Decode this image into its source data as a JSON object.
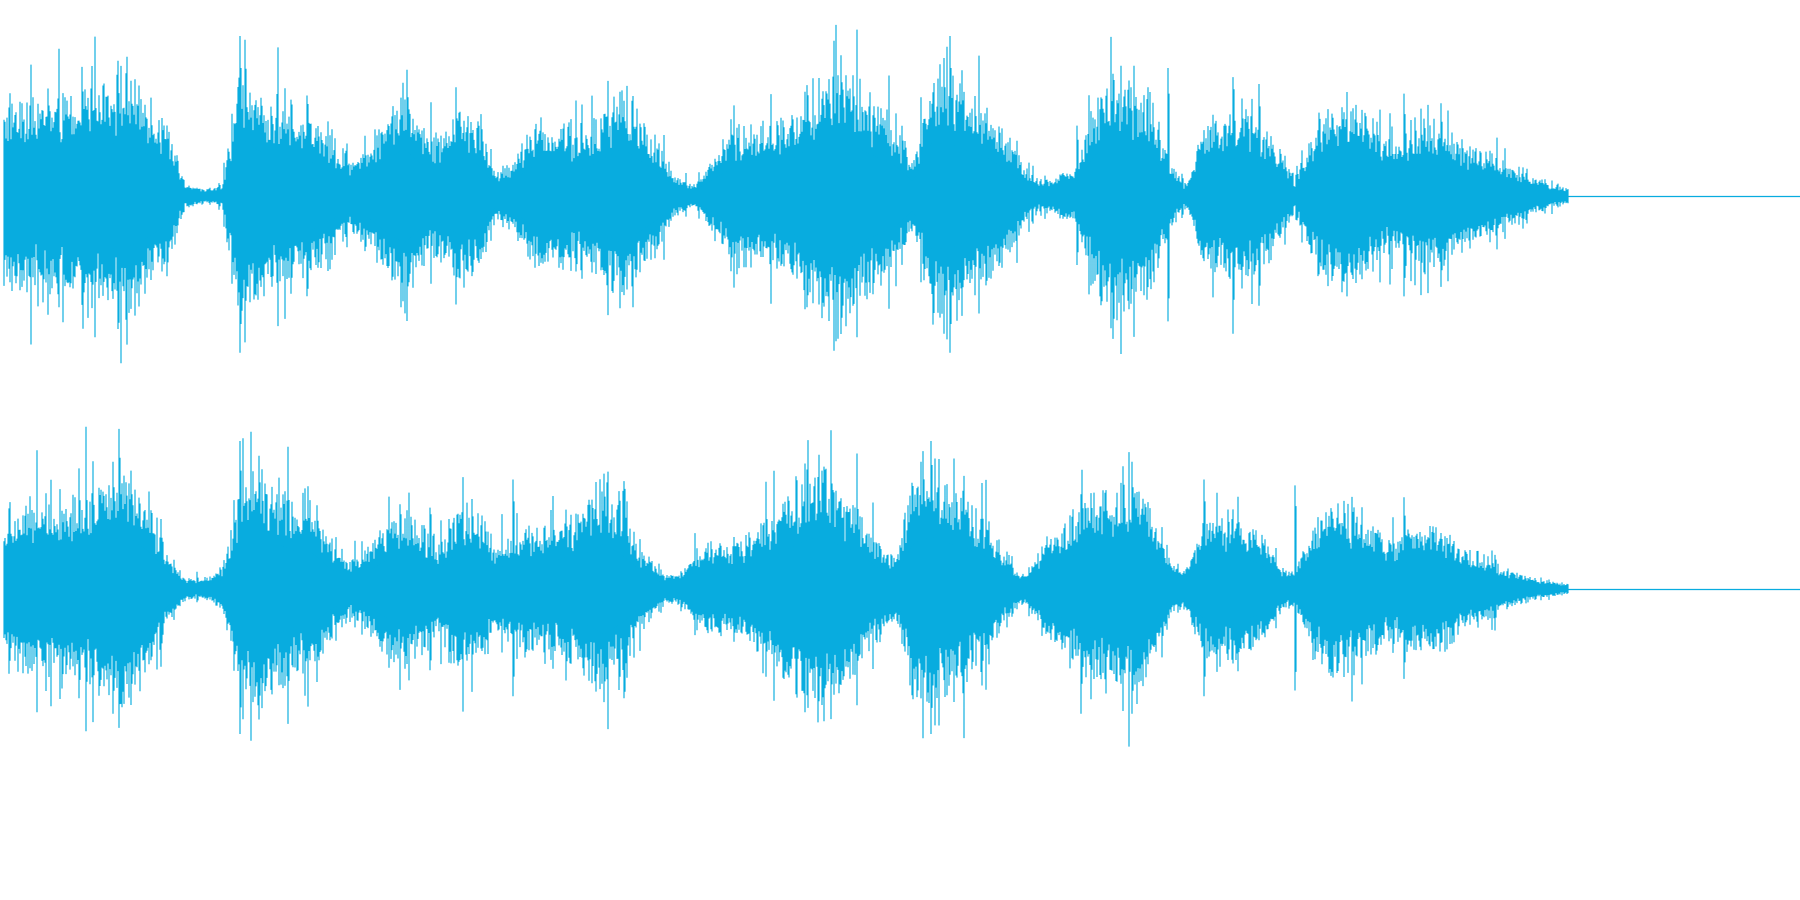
{
  "waveform": {
    "color": "#08acdf",
    "channels": [
      {
        "name": "channel-1",
        "envelope": [
          0.6,
          0.64,
          0.62,
          0.58,
          0.66,
          0.72,
          0.79,
          0.74,
          0.6,
          0.42,
          0.07,
          0.05,
          0.06,
          0.86,
          0.67,
          0.6,
          0.56,
          0.5,
          0.35,
          0.26,
          0.31,
          0.54,
          0.7,
          0.46,
          0.39,
          0.58,
          0.48,
          0.17,
          0.23,
          0.43,
          0.46,
          0.45,
          0.4,
          0.56,
          0.71,
          0.52,
          0.34,
          0.12,
          0.08,
          0.25,
          0.41,
          0.45,
          0.46,
          0.5,
          0.66,
          0.79,
          0.86,
          0.7,
          0.58,
          0.45,
          0.21,
          0.79,
          0.78,
          0.67,
          0.58,
          0.41,
          0.21,
          0.09,
          0.13,
          0.2,
          0.62,
          0.72,
          0.75,
          0.64,
          0.25,
          0.07,
          0.47,
          0.48,
          0.6,
          0.49,
          0.31,
          0.1,
          0.42,
          0.61,
          0.66,
          0.5,
          0.38,
          0.34,
          0.5,
          0.46,
          0.34,
          0.3,
          0.25,
          0.18,
          0.12,
          0.08,
          0.05
        ],
        "spikes": [
          [
            1,
            0.58
          ],
          [
            7,
            0.72
          ],
          [
            13,
            1.0
          ],
          [
            25,
            0.52
          ],
          [
            40,
            0.48
          ],
          [
            46,
            0.88
          ],
          [
            52,
            1.0
          ],
          [
            59,
            0.44
          ],
          [
            64,
            0.8
          ],
          [
            69,
            0.7
          ],
          [
            77,
            0.64
          ],
          [
            79,
            0.58
          ]
        ]
      },
      {
        "name": "channel-2",
        "envelope": [
          0.55,
          0.57,
          0.61,
          0.64,
          0.66,
          0.73,
          0.81,
          0.8,
          0.6,
          0.27,
          0.07,
          0.08,
          0.13,
          0.71,
          0.74,
          0.73,
          0.61,
          0.57,
          0.31,
          0.22,
          0.28,
          0.46,
          0.54,
          0.47,
          0.33,
          0.59,
          0.51,
          0.34,
          0.39,
          0.46,
          0.43,
          0.52,
          0.57,
          0.73,
          0.54,
          0.3,
          0.12,
          0.11,
          0.27,
          0.34,
          0.33,
          0.39,
          0.48,
          0.63,
          0.77,
          0.86,
          0.69,
          0.59,
          0.35,
          0.21,
          0.74,
          0.84,
          0.73,
          0.65,
          0.51,
          0.23,
          0.11,
          0.28,
          0.44,
          0.56,
          0.64,
          0.7,
          0.74,
          0.63,
          0.2,
          0.14,
          0.5,
          0.52,
          0.5,
          0.42,
          0.18,
          0.11,
          0.49,
          0.61,
          0.52,
          0.45,
          0.35,
          0.42,
          0.47,
          0.43,
          0.3,
          0.24,
          0.19,
          0.12,
          0.08,
          0.05,
          0.04
        ],
        "spikes": [
          [
            6,
            0.86
          ],
          [
            7,
            0.8
          ],
          [
            13,
            1.0
          ],
          [
            14,
            0.9
          ],
          [
            28,
            0.74
          ],
          [
            33,
            0.78
          ],
          [
            45,
            0.8
          ],
          [
            51,
            1.0
          ],
          [
            62,
            0.86
          ],
          [
            66,
            0.74
          ],
          [
            71,
            0.7
          ],
          [
            77,
            0.62
          ]
        ]
      }
    ]
  }
}
